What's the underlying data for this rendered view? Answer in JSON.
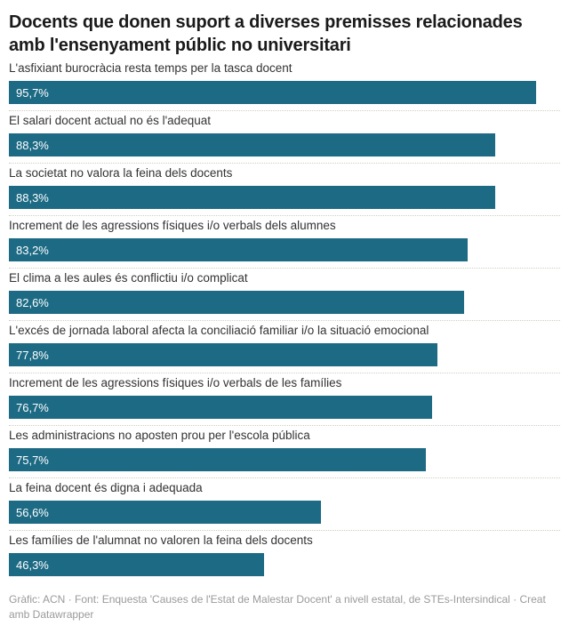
{
  "header": {
    "title": "Docents que donen suport a diverses premisses relacionades amb l'ensenyament públic no universitari"
  },
  "chart_data": {
    "type": "bar",
    "orientation": "horizontal",
    "title": "Docents que donen suport a diverses premisses relacionades amb l'ensenyament públic no universitari",
    "xlabel": "",
    "ylabel": "",
    "xlim": [
      0,
      100
    ],
    "unit": "%",
    "grid": false,
    "legend": "none",
    "categories": [
      "L'asfixiant burocràcia resta temps per la tasca docent",
      "El salari docent actual no és l'adequat",
      "La societat no valora la feina dels docents",
      "Increment de les agressions físiques i/o verbals dels alumnes",
      "El clima a les aules és conflictiu i/o complicat",
      "L'excés de jornada laboral afecta la conciliació familiar i/o la situació emocional",
      "Increment de les agressions físiques i/o verbals de les famílies",
      "Les administracions no aposten prou per l'escola pública",
      "La feina docent és digna i adequada",
      "Les famílies de l'alumnat no valoren la feina dels docents"
    ],
    "values": [
      95.7,
      88.3,
      88.3,
      83.2,
      82.6,
      77.8,
      76.7,
      75.7,
      56.6,
      46.3
    ],
    "value_labels": [
      "95,7%",
      "88,3%",
      "88,3%",
      "83,2%",
      "82,6%",
      "77,8%",
      "76,7%",
      "75,7%",
      "56,6%",
      "46,3%"
    ]
  },
  "footer": {
    "credit": "Gràfic: ACN · Font: Enquesta 'Causes de l'Estat de Malestar Docent' a nivell estatal, de STEs-Intersindical · Creat amb Datawrapper"
  },
  "colors": {
    "bar": "#1d6a84",
    "title_text": "#1a1a1a",
    "label_text": "#333333",
    "value_text": "#ffffff",
    "divider": "#cfcdc3",
    "footer_text": "#9a9a9a",
    "background": "#ffffff"
  }
}
